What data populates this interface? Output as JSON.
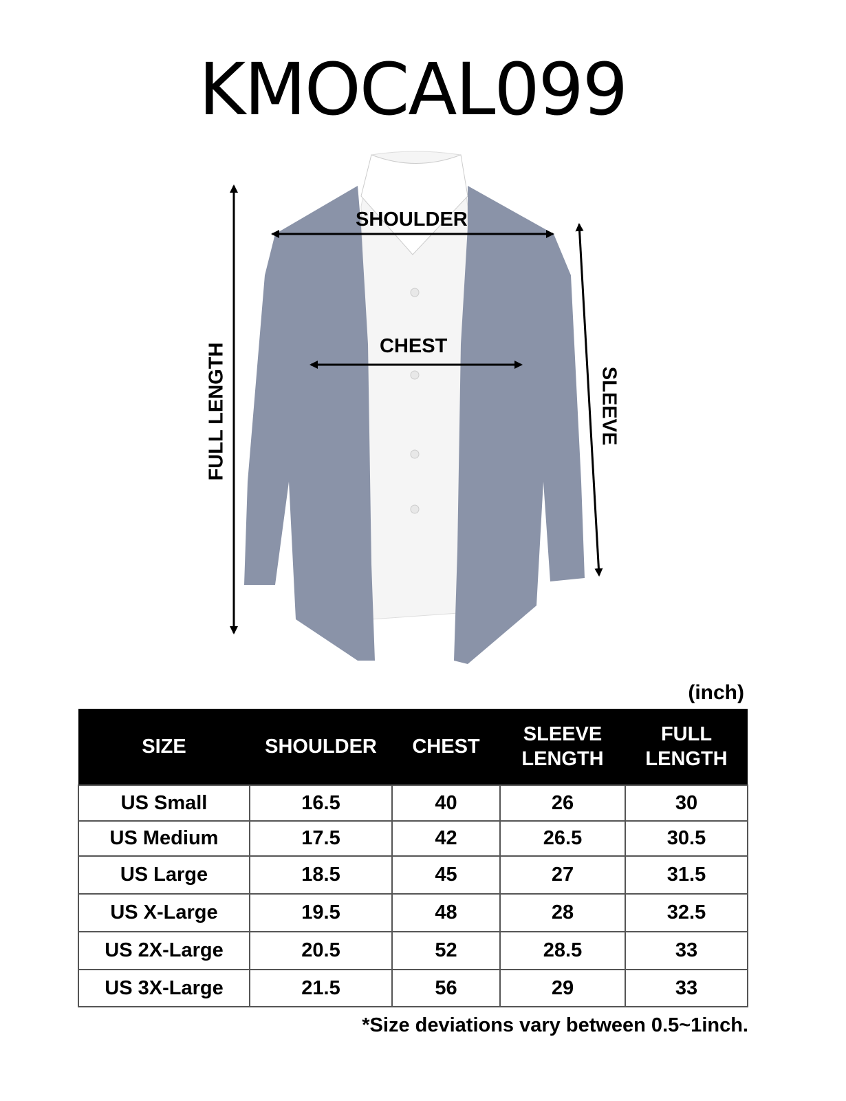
{
  "title": "KMOCAL099",
  "diagram": {
    "labels": {
      "shoulder": "SHOULDER",
      "chest": "CHEST",
      "full_length": "FULL LENGTH",
      "sleeve": "SLEEVE"
    },
    "garment_color": "#8a93a8",
    "shirt_color": "#f5f5f5"
  },
  "unit": "(inch)",
  "table": {
    "headers": [
      "SIZE",
      "SHOULDER",
      "CHEST",
      "SLEEVE\nLENGTH",
      "FULL\nLENGTH"
    ],
    "header_lines": [
      [
        "SIZE"
      ],
      [
        "SHOULDER"
      ],
      [
        "CHEST"
      ],
      [
        "SLEEVE",
        "LENGTH"
      ],
      [
        "FULL",
        "LENGTH"
      ]
    ],
    "rows": [
      [
        "US Small",
        "16.5",
        "40",
        "26",
        "30"
      ],
      [
        "US Medium",
        "17.5",
        "42",
        "26.5",
        "30.5"
      ],
      [
        "US Large",
        "18.5",
        "45",
        "27",
        "31.5"
      ],
      [
        "US X-Large",
        "19.5",
        "48",
        "28",
        "32.5"
      ],
      [
        "US 2X-Large",
        "20.5",
        "52",
        "28.5",
        "33"
      ],
      [
        "US 3X-Large",
        "21.5",
        "56",
        "29",
        "33"
      ]
    ]
  },
  "note": "*Size deviations vary between 0.5~1inch."
}
